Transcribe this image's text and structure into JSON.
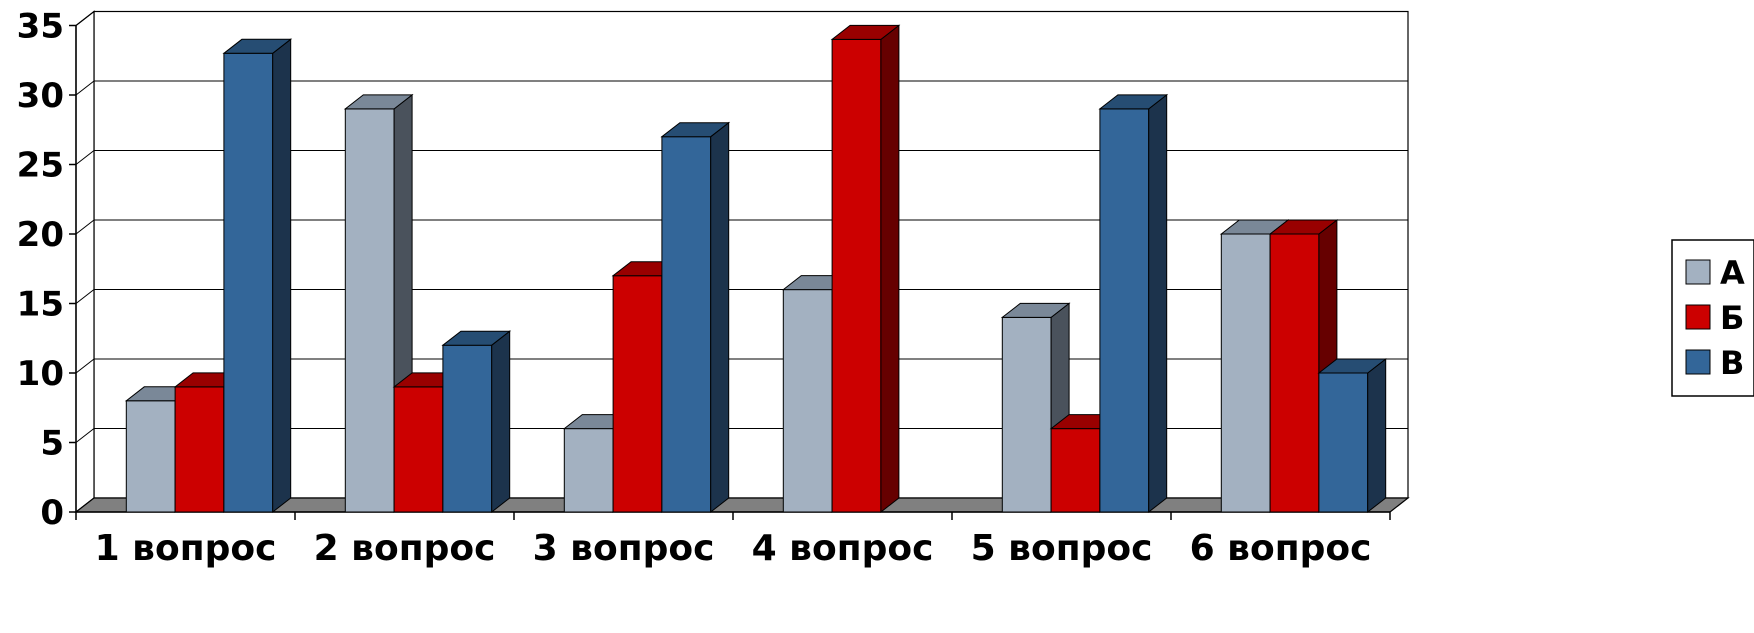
{
  "chart_data": {
    "type": "bar",
    "style": "3d-clustered-column",
    "categories": [
      "1 вопрос",
      "2 вопрос",
      "3 вопрос",
      "4 вопрос",
      "5 вопрос",
      "6 вопрос"
    ],
    "series": [
      {
        "name": "А",
        "values": [
          8,
          29,
          6,
          16,
          14,
          20
        ],
        "color": "#A3B1C1",
        "side_color": "#4A525C",
        "top_color": "#7A8898"
      },
      {
        "name": "Б",
        "values": [
          9,
          9,
          17,
          34,
          6,
          20
        ],
        "color": "#CC0000",
        "side_color": "#660000",
        "top_color": "#990000"
      },
      {
        "name": "В",
        "values": [
          33,
          12,
          27,
          0,
          29,
          10
        ],
        "color": "#336699",
        "side_color": "#1C334C",
        "top_color": "#264D73"
      }
    ],
    "y_ticks": [
      "0",
      "5",
      "10",
      "15",
      "20",
      "25",
      "30",
      "35"
    ],
    "ylim": [
      0,
      35
    ],
    "grid": true,
    "legend_position": "right",
    "floor_color": "#808080",
    "title": "",
    "xlabel": "",
    "ylabel": ""
  }
}
